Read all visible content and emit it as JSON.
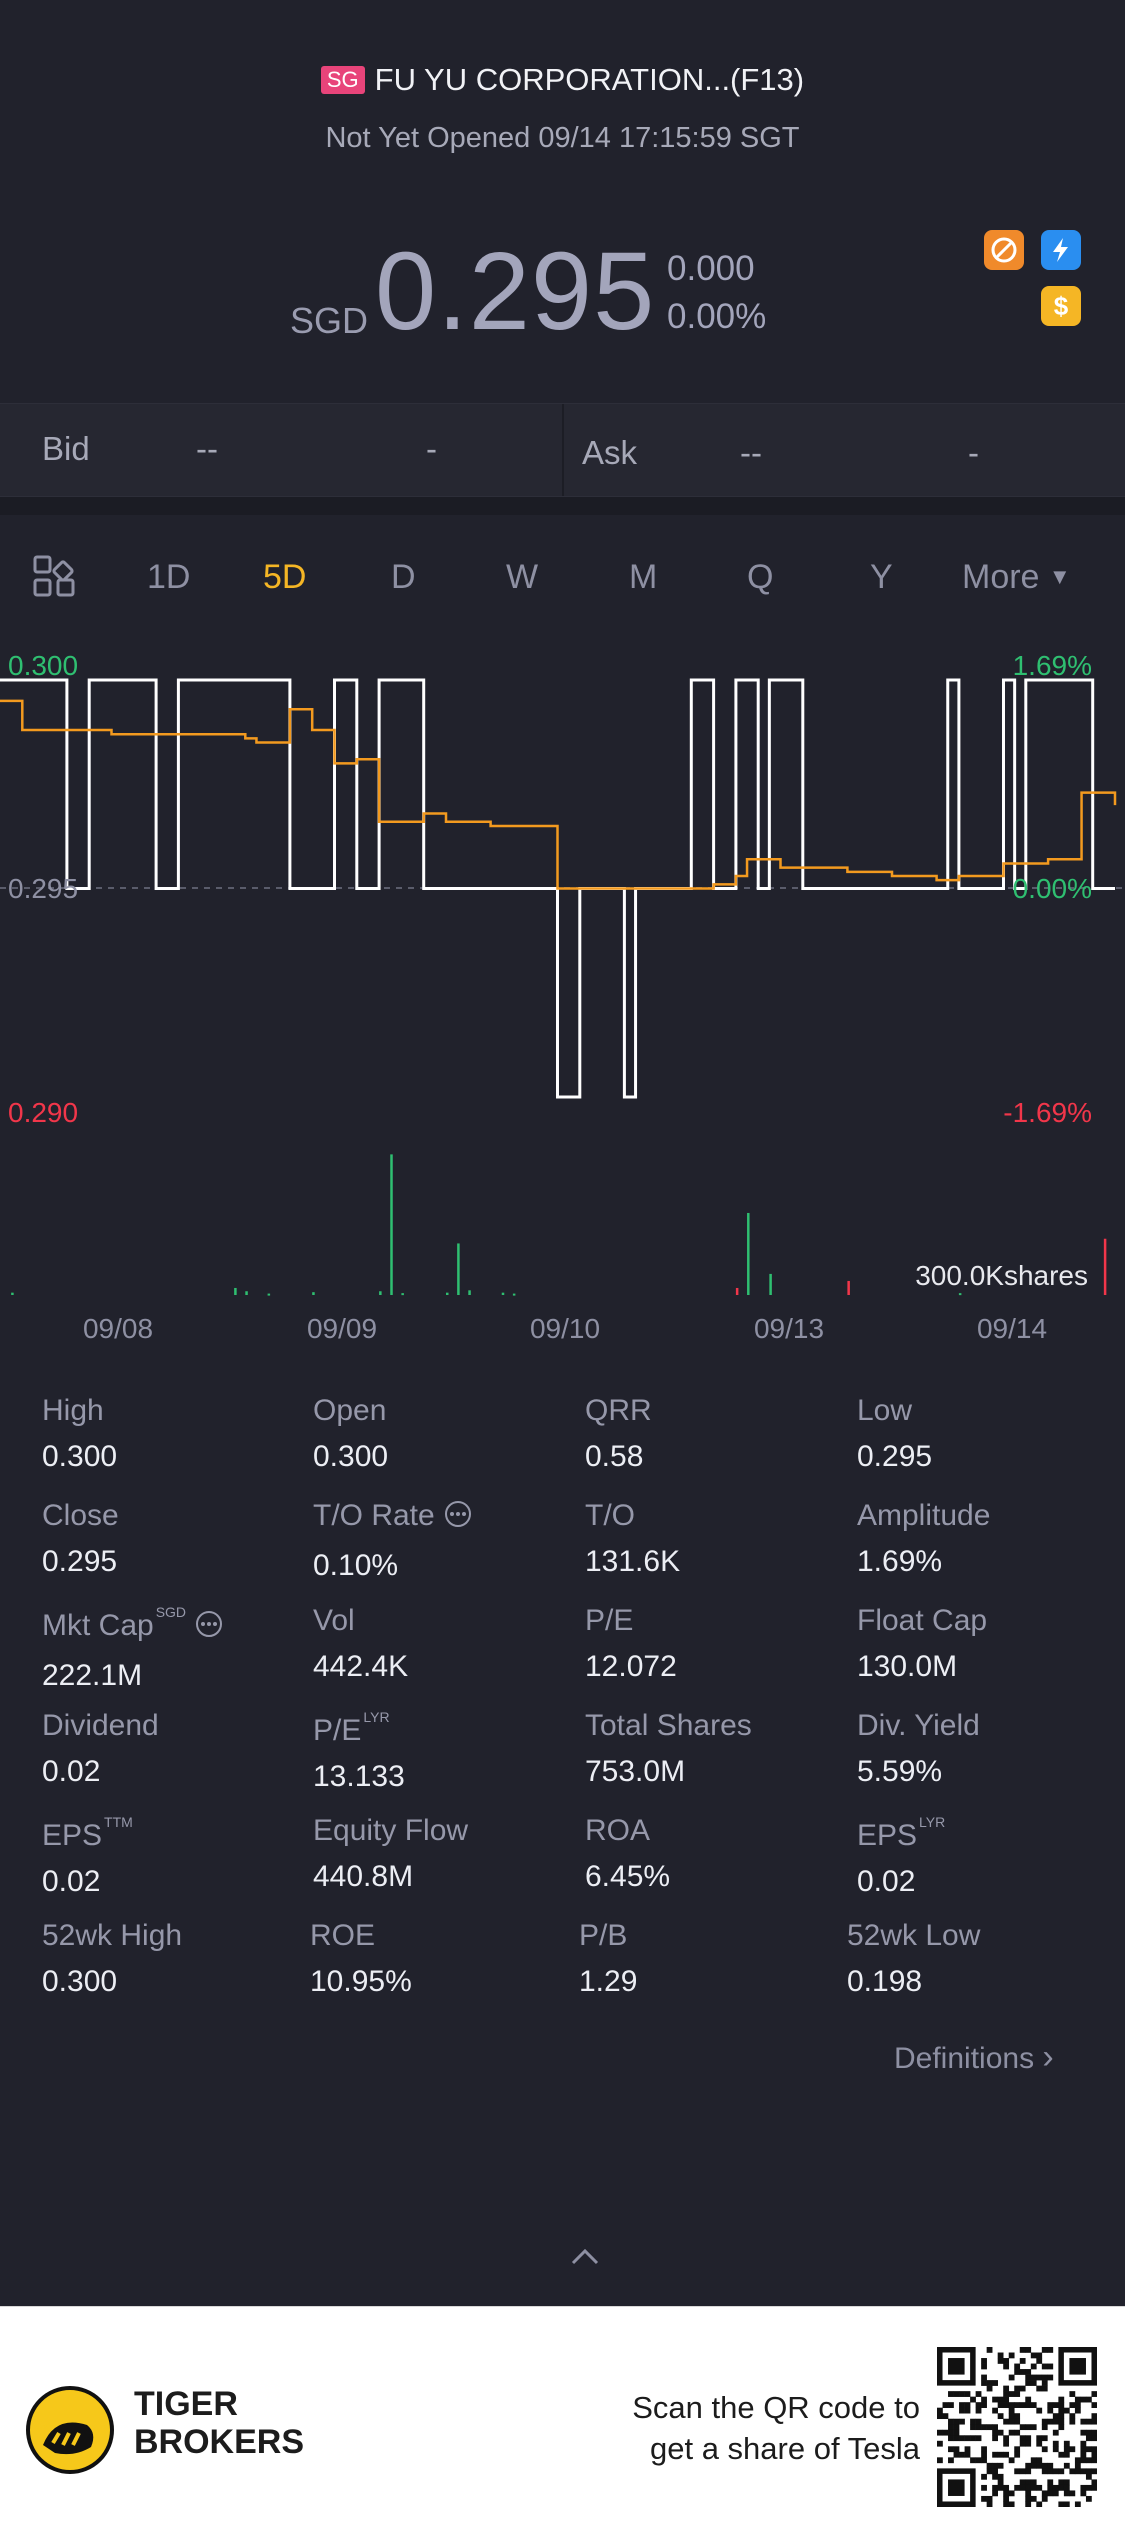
{
  "header": {
    "market_badge": "SG",
    "title": "FU YU CORPORATION...(F13)",
    "status": "Not Yet Opened 09/14 17:15:59 SGT"
  },
  "quote": {
    "currency": "SGD",
    "price": "0.295",
    "change": "0.000",
    "change_pct": "0.00%"
  },
  "bidask": {
    "bid_label": "Bid",
    "bid_price": "--",
    "bid_size": "-",
    "ask_label": "Ask",
    "ask_price": "--",
    "ask_size": "-"
  },
  "tabs": {
    "items": [
      "1D",
      "5D",
      "D",
      "W",
      "M",
      "Q",
      "Y",
      "More"
    ],
    "active": "5D"
  },
  "chart_data": {
    "type": "line",
    "y_left_ticks": [
      "0.300",
      "0.295",
      "0.290"
    ],
    "y_right_ticks": [
      "1.69%",
      "0.00%",
      "-1.69%"
    ],
    "ylim": [
      0.29,
      0.3
    ],
    "x_ticks": [
      "09/08",
      "09/09",
      "09/10",
      "09/13",
      "09/14"
    ],
    "volume_label": "300.0Kshares",
    "series": [
      {
        "color": "#ffffff",
        "x": [
          0,
          0.3,
          0.4,
          0.7,
          0.8,
          1.3,
          1.5,
          1.6,
          1.7,
          1.9,
          2.0,
          2.5,
          2.6,
          2.7,
          2.8,
          2.85,
          3.0,
          3.1,
          3.2,
          3.3,
          3.4,
          3.45,
          3.6,
          3.7,
          3.8,
          4.0,
          4.2,
          4.25,
          4.3,
          4.5,
          4.55,
          4.6,
          4.9,
          5.0
        ],
        "values": [
          0.3,
          0.295,
          0.3,
          0.295,
          0.3,
          0.295,
          0.3,
          0.295,
          0.3,
          0.295,
          0.295,
          0.29,
          0.295,
          0.295,
          0.29,
          0.295,
          0.295,
          0.3,
          0.295,
          0.3,
          0.295,
          0.3,
          0.295,
          0.295,
          0.295,
          0.295,
          0.295,
          0.3,
          0.295,
          0.3,
          0.295,
          0.3,
          0.295,
          0.295
        ]
      },
      {
        "color": "#f39a1f",
        "x": [
          0,
          0.1,
          0.3,
          0.5,
          0.8,
          1.1,
          1.15,
          1.3,
          1.4,
          1.5,
          1.6,
          1.7,
          1.8,
          1.9,
          2.0,
          2.2,
          2.5,
          2.8,
          3.0,
          3.2,
          3.3,
          3.35,
          3.5,
          3.8,
          4.0,
          4.2,
          4.3,
          4.5,
          4.7,
          4.8,
          4.85,
          4.95,
          5.0
        ],
        "values": [
          0.2995,
          0.2988,
          0.2988,
          0.2987,
          0.2987,
          0.2986,
          0.2985,
          0.2993,
          0.2988,
          0.298,
          0.2981,
          0.2966,
          0.2966,
          0.2968,
          0.2966,
          0.2965,
          0.295,
          0.295,
          0.295,
          0.2951,
          0.2953,
          0.2957,
          0.2955,
          0.2954,
          0.2953,
          0.2952,
          0.2953,
          0.2956,
          0.2957,
          0.2957,
          0.2973,
          0.2973,
          0.297
        ]
      }
    ],
    "volume": {
      "x": [
        0.05,
        1.05,
        1.1,
        1.2,
        1.4,
        1.7,
        1.75,
        1.8,
        2.0,
        2.05,
        2.1,
        2.25,
        2.3,
        3.3,
        3.35,
        3.45,
        3.8,
        4.3,
        4.95
      ],
      "values": [
        5,
        15,
        8,
        3,
        6,
        8,
        300,
        4,
        5,
        110,
        10,
        5,
        3,
        15,
        175,
        45,
        30,
        4,
        120
      ],
      "colors": [
        "green",
        "green",
        "green",
        "green",
        "green",
        "green",
        "green",
        "green",
        "green",
        "green",
        "green",
        "green",
        "green",
        "red",
        "green",
        "green",
        "red",
        "green",
        "red"
      ]
    }
  },
  "stats": [
    {
      "label": "High",
      "value": "0.300"
    },
    {
      "label": "Open",
      "value": "0.300"
    },
    {
      "label": "QRR",
      "value": "0.58"
    },
    {
      "label": "Low",
      "value": "0.295"
    },
    {
      "label": "Close",
      "value": "0.295"
    },
    {
      "label": "T/O Rate",
      "value": "0.10%"
    },
    {
      "label": "T/O",
      "value": "131.6K"
    },
    {
      "label": "Amplitude",
      "value": "1.69%"
    },
    {
      "label": "Mkt Cap",
      "value": "222.1M",
      "sup": "SGD"
    },
    {
      "label": "Vol",
      "value": "442.4K"
    },
    {
      "label": "P/E",
      "value": "12.072"
    },
    {
      "label": "Float Cap",
      "value": "130.0M"
    },
    {
      "label": "Dividend",
      "value": "0.02"
    },
    {
      "label": "P/E",
      "value": "13.133",
      "sup": "LYR"
    },
    {
      "label": "Total Shares",
      "value": "753.0M"
    },
    {
      "label": "Div. Yield",
      "value": "5.59%"
    },
    {
      "label": "EPS",
      "value": "0.02",
      "sup": "TTM"
    },
    {
      "label": "Equity Flow",
      "value": "440.8M"
    },
    {
      "label": "ROA",
      "value": "6.45%"
    },
    {
      "label": "EPS",
      "value": "0.02",
      "sup": "LYR"
    },
    {
      "label": "52wk High",
      "value": "0.300"
    },
    {
      "label": "ROE",
      "value": "10.95%"
    },
    {
      "label": "P/B",
      "value": "1.29"
    },
    {
      "label": "52wk Low",
      "value": "0.198"
    }
  ],
  "definitions_label": "Definitions",
  "footer": {
    "brand_line1": "TIGER",
    "brand_line2": "BROKERS",
    "promo_line1": "Scan the QR code to",
    "promo_line2": "get a share of Tesla"
  },
  "colors": {
    "background": "#21222c",
    "accent": "#f5b625",
    "up": "#2fbf71",
    "down": "#f1364a",
    "price_line": "#f39a1f"
  }
}
